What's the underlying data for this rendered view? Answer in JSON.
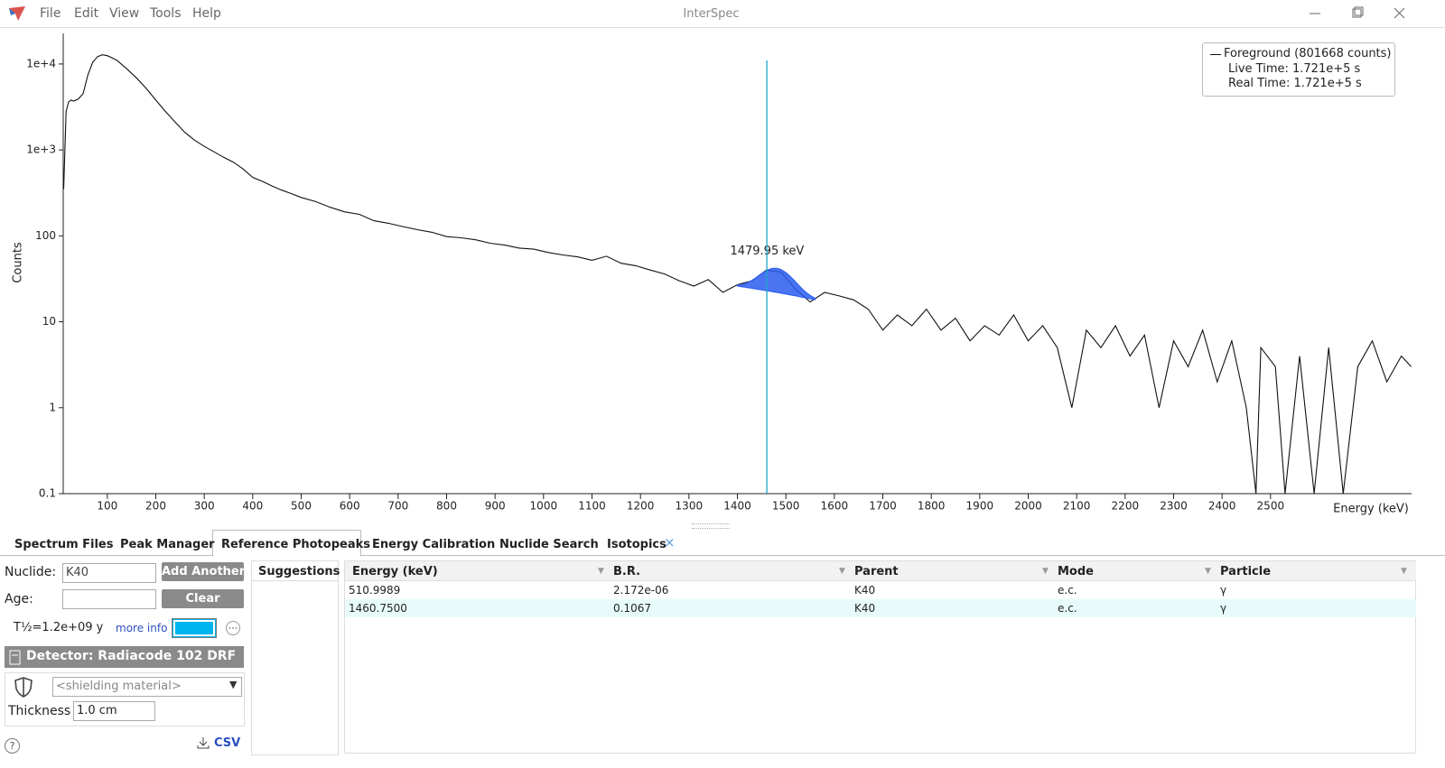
{
  "window": {
    "title": "InterSpec",
    "menu": [
      "File",
      "Edit",
      "View",
      "Tools",
      "Help"
    ]
  },
  "chart_data": {
    "type": "line",
    "log_y": true,
    "x_label": "Energy (keV)",
    "y_label": "Counts",
    "xlim": [
      9,
      2791
    ],
    "ylim": [
      0.1,
      22700
    ],
    "xticks": [
      100,
      200,
      300,
      400,
      500,
      600,
      700,
      800,
      900,
      1000,
      1100,
      1200,
      1300,
      1400,
      1500,
      1600,
      1700,
      1800,
      1900,
      2000,
      2100,
      2200,
      2300,
      2400,
      2500
    ],
    "yticks": [
      {
        "value": 10000,
        "label": "1e+4"
      },
      {
        "value": 1000,
        "label": "1e+3"
      },
      100,
      10,
      1,
      0.1
    ],
    "x": [
      10,
      15,
      20,
      25,
      30,
      40,
      50,
      60,
      70,
      80,
      90,
      100,
      110,
      120,
      140,
      160,
      180,
      200,
      220,
      240,
      260,
      280,
      300,
      320,
      340,
      360,
      380,
      400,
      420,
      440,
      460,
      480,
      500,
      530,
      560,
      590,
      620,
      650,
      680,
      710,
      740,
      770,
      800,
      830,
      860,
      890,
      920,
      950,
      980,
      1010,
      1040,
      1070,
      1100,
      1130,
      1160,
      1190,
      1220,
      1250,
      1280,
      1310,
      1340,
      1370,
      1400,
      1430,
      1460,
      1490,
      1520,
      1550,
      1580,
      1610,
      1640,
      1670,
      1700,
      1730,
      1760,
      1790,
      1820,
      1850,
      1880,
      1910,
      1940,
      1970,
      2000,
      2030,
      2060,
      2090,
      2120,
      2150,
      2180,
      2210,
      2240,
      2270,
      2300,
      2330,
      2360,
      2390,
      2420,
      2450,
      2470,
      2480,
      2510,
      2530,
      2560,
      2590,
      2620,
      2650,
      2680,
      2710,
      2740,
      2770,
      2790
    ],
    "series": [
      {
        "name": "Foreground (801668 counts)",
        "color": "#111111",
        "values": [
          350,
          2800,
          3600,
          3800,
          3700,
          3900,
          4500,
          7500,
          10500,
          12200,
          12800,
          12500,
          11800,
          11000,
          8800,
          6900,
          5200,
          3800,
          2800,
          2100,
          1600,
          1300,
          1100,
          950,
          820,
          720,
          600,
          480,
          430,
          380,
          340,
          310,
          280,
          250,
          215,
          190,
          178,
          150,
          140,
          128,
          118,
          110,
          98,
          95,
          90,
          82,
          78,
          72,
          70,
          64,
          60,
          57,
          52,
          58,
          48,
          45,
          40,
          36,
          30,
          26,
          31,
          22,
          27,
          30,
          40,
          38,
          24,
          17,
          22,
          20,
          18,
          14,
          8,
          12,
          9,
          14,
          8,
          11,
          6,
          9,
          7,
          12,
          6,
          9,
          5,
          1,
          8,
          5,
          9,
          4,
          7,
          1,
          6,
          3,
          8,
          2,
          6,
          1,
          0.1,
          5,
          3,
          0.1,
          4,
          0.1,
          5,
          0.1,
          3,
          6,
          2,
          4,
          3
        ]
      }
    ],
    "legend": {
      "corner": "top-right",
      "details": [
        "Live Time: 1.721e+5 s",
        "Real Time: 1.721e+5 s"
      ]
    },
    "peak": {
      "label": "1479.95 keV",
      "energy": 1479.95,
      "sigma": 32,
      "height": 20,
      "range": [
        1400,
        1560
      ],
      "continuum": [
        26,
        18
      ],
      "color": "#2a5cf0"
    },
    "reference_line": {
      "energy": 1460.75,
      "color": "#1ba6c9"
    }
  },
  "tabs": {
    "items": [
      "Spectrum Files",
      "Peak Manager",
      "Reference Photopeaks",
      "Energy Calibration",
      "Nuclide Search",
      "Isotopics"
    ],
    "active": 2,
    "close": "×"
  },
  "panel": {
    "nuclide_label": "Nuclide:",
    "nuclide": "K40",
    "add_button": "Add Another",
    "age_label": "Age:",
    "clear_button": "Clear",
    "half_life": "T½=1.2e+09 y",
    "more_info": "more info",
    "swatch_color": "#00b4f0",
    "detector": "Detector: Radiacode 102 DRF",
    "shielding": "<shielding material>",
    "thickness_label": "Thickness",
    "thickness": "1.0 cm",
    "csv": "CSV",
    "help": "?",
    "suggestions": "Suggestions"
  },
  "table": {
    "columns": [
      "Energy (keV)",
      "B.R.",
      "Parent",
      "Mode",
      "Particle"
    ],
    "rows": [
      [
        "510.9989",
        "2.172e-06",
        "K40",
        "e.c.",
        "γ"
      ],
      [
        "1460.7500",
        "0.1067",
        "K40",
        "e.c.",
        "γ"
      ]
    ]
  }
}
